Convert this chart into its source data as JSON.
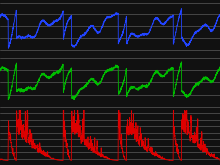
{
  "background_color": "#111111",
  "panel_bg": "#111111",
  "grid_color": "#777777",
  "colors": [
    "#2244ff",
    "#00bb00",
    "#dd0000"
  ],
  "linewidths": [
    0.6,
    0.6,
    0.6
  ],
  "figsize": [
    2.2,
    1.65
  ],
  "dpi": 100,
  "grid_alpha": 0.9
}
